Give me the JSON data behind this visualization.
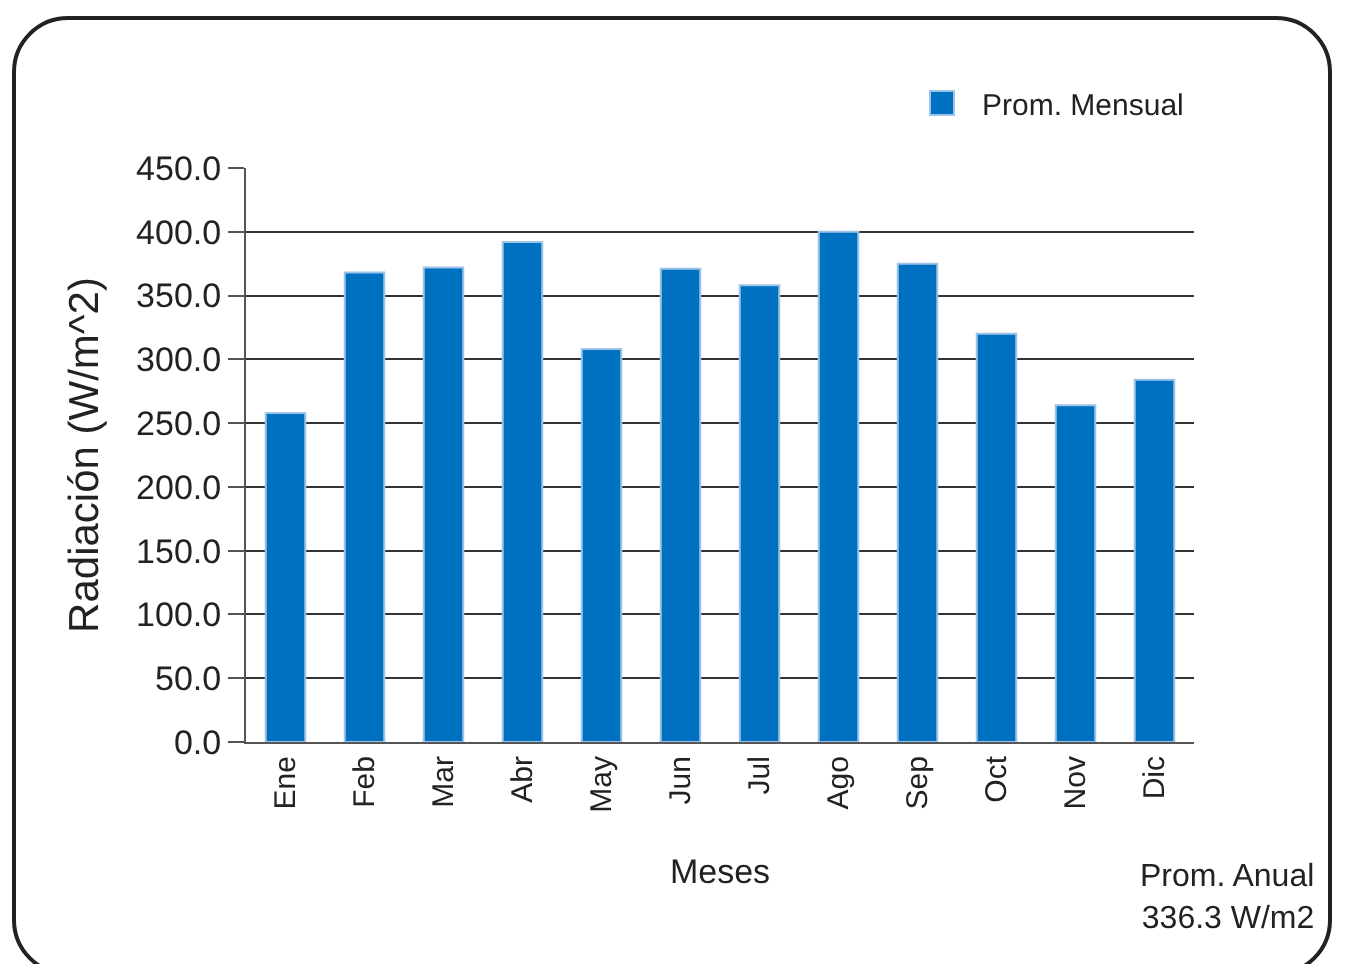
{
  "chart_data": {
    "type": "bar",
    "xlabel": "Meses",
    "ylabel": "Radiación (W/m^2)",
    "categories": [
      "Ene",
      "Feb",
      "Mar",
      "Abr",
      "May",
      "Jun",
      "Jul",
      "Ago",
      "Sep",
      "Oct",
      "Nov",
      "Dic"
    ],
    "series": [
      {
        "name": "Prom. Mensual",
        "color": "#0070c0",
        "values": [
          258,
          368,
          372,
          392,
          308,
          371,
          358,
          400,
          375,
          320,
          264,
          284
        ]
      }
    ],
    "ylim": [
      0,
      450
    ],
    "yticks": [
      {
        "value": 0,
        "label": "0.0"
      },
      {
        "value": 50,
        "label": "50.0"
      },
      {
        "value": 100,
        "label": "100.0"
      },
      {
        "value": 150,
        "label": "150.0"
      },
      {
        "value": 200,
        "label": "200.0"
      },
      {
        "value": 250,
        "label": "250.0"
      },
      {
        "value": 300,
        "label": "300.0"
      },
      {
        "value": 350,
        "label": "350.0"
      },
      {
        "value": 400,
        "label": "400.0"
      },
      {
        "value": 450,
        "label": "450.0"
      }
    ],
    "grid": "y",
    "legend": "top right",
    "annotations": [
      "Prom. Anual\n336.3 W/m2"
    ]
  }
}
